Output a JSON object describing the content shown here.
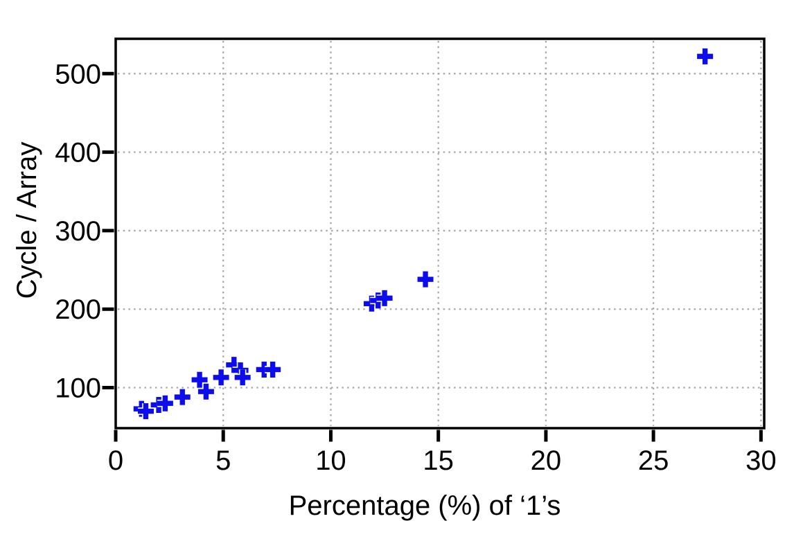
{
  "figure": {
    "background": "#ffffff"
  },
  "chart_data": {
    "type": "scatter",
    "title": "",
    "xlabel": "Percentage (%) of ‘1’s",
    "ylabel": "Cycle / Array",
    "xlim": [
      0,
      30.15
    ],
    "ylim": [
      48.4,
      544.4
    ],
    "xticks": [
      0,
      5,
      10,
      15,
      20,
      25,
      30
    ],
    "yticks": [
      100,
      200,
      300,
      400,
      500
    ],
    "grid": {
      "style": "dotted",
      "color": "#a8a8a8",
      "line_width": 2.3
    },
    "axis_color": "#000000",
    "frame_width": 3.5,
    "tick_length": 17,
    "tick_width": 5,
    "legend": "none",
    "marker": {
      "shape": "plus",
      "color": "#0d0deb",
      "outline": "#ffffff",
      "size": 23,
      "stroke_width": 7.4
    },
    "points": [
      [
        1.2,
        73
      ],
      [
        1.4,
        70
      ],
      [
        2.0,
        78
      ],
      [
        2.3,
        80
      ],
      [
        3.1,
        88
      ],
      [
        3.9,
        110
      ],
      [
        4.2,
        95
      ],
      [
        4.9,
        113
      ],
      [
        5.5,
        129
      ],
      [
        5.8,
        122
      ],
      [
        5.9,
        113
      ],
      [
        6.9,
        123
      ],
      [
        7.3,
        123
      ],
      [
        11.9,
        207
      ],
      [
        12.2,
        211
      ],
      [
        12.5,
        214
      ],
      [
        14.4,
        238
      ],
      [
        27.4,
        522
      ]
    ]
  }
}
